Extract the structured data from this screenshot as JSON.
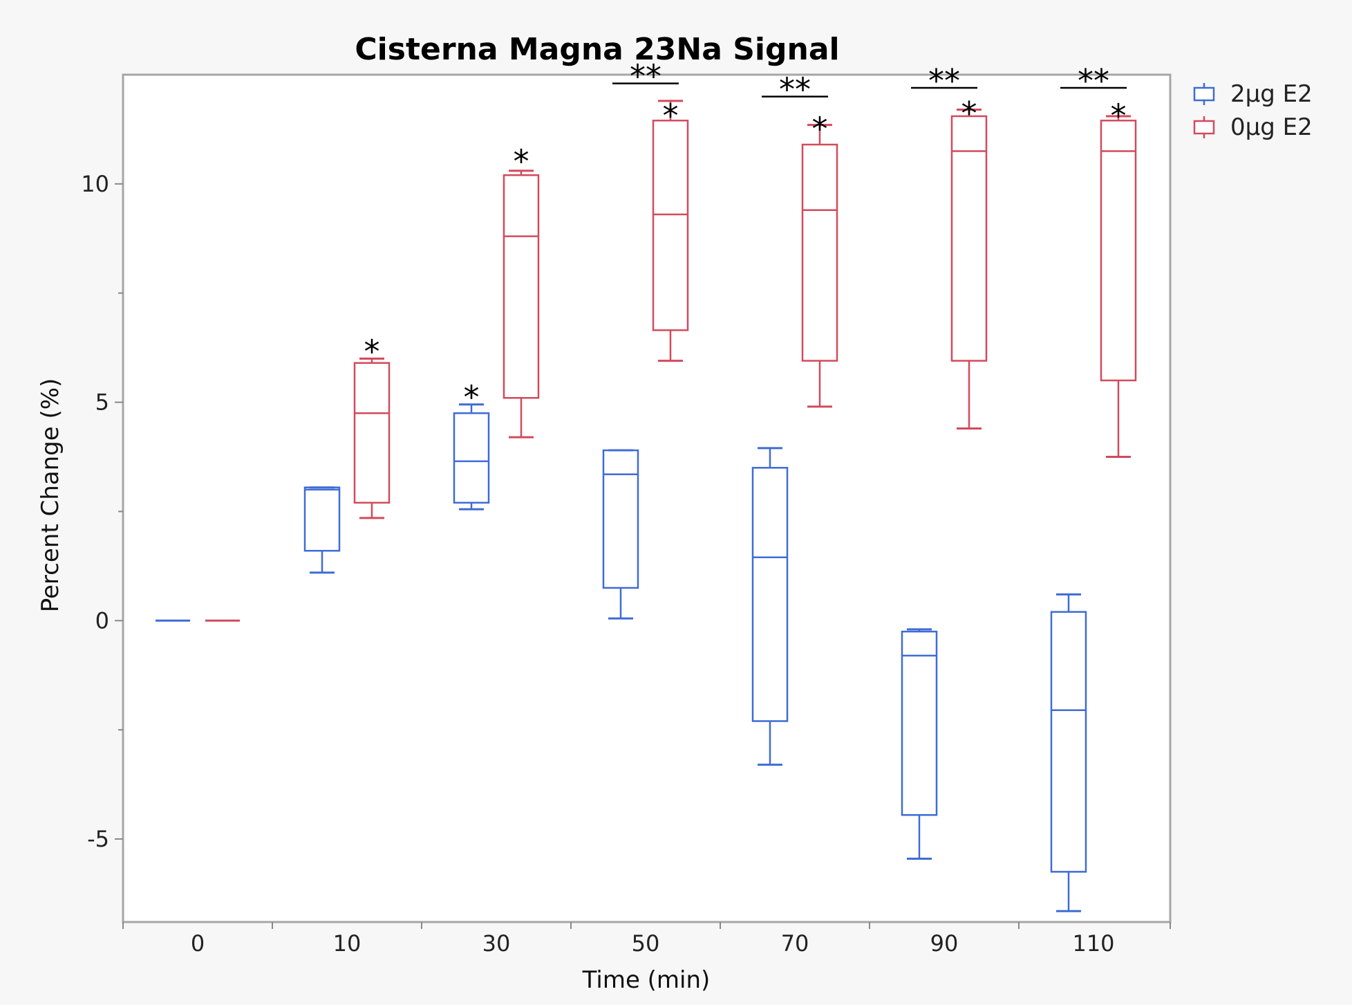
{
  "chart_data": {
    "type": "box",
    "title": "Cisterna Magna 23Na Signal",
    "xlabel": "Time (min)",
    "ylabel": "Percent Change (%)",
    "ylim": [
      -6.9,
      12.5
    ],
    "yticks": [
      -5,
      0,
      5,
      10
    ],
    "categories": [
      "0",
      "10",
      "30",
      "50",
      "70",
      "90",
      "110"
    ],
    "legend_position": "top-right outside",
    "series": [
      {
        "name": "2µg E2",
        "color": "#3e6bd6",
        "boxes": [
          {
            "min": 0,
            "q1": 0,
            "median": 0,
            "q3": 0,
            "max": 0
          },
          {
            "min": 1.1,
            "q1": 1.6,
            "median": 3.0,
            "q3": 3.05,
            "max": 3.05
          },
          {
            "min": 2.55,
            "q1": 2.7,
            "median": 3.65,
            "q3": 4.75,
            "max": 4.95
          },
          {
            "min": 0.05,
            "q1": 0.75,
            "median": 3.35,
            "q3": 3.9,
            "max": 3.9
          },
          {
            "min": -3.3,
            "q1": -2.3,
            "median": 1.45,
            "q3": 3.5,
            "max": 3.95
          },
          {
            "min": -5.45,
            "q1": -4.45,
            "median": -0.8,
            "q3": -0.25,
            "max": -0.2
          },
          {
            "min": -6.65,
            "q1": -5.75,
            "median": -2.05,
            "q3": 0.2,
            "max": 0.6
          }
        ]
      },
      {
        "name": "0µg E2",
        "color": "#d24a5c",
        "boxes": [
          {
            "min": 0,
            "q1": 0,
            "median": 0,
            "q3": 0,
            "max": 0
          },
          {
            "min": 2.35,
            "q1": 2.7,
            "median": 4.75,
            "q3": 5.9,
            "max": 6.0
          },
          {
            "min": 4.2,
            "q1": 5.1,
            "median": 8.8,
            "q3": 10.2,
            "max": 10.3
          },
          {
            "min": 5.95,
            "q1": 6.65,
            "median": 9.3,
            "q3": 11.45,
            "max": 11.9
          },
          {
            "min": 4.9,
            "q1": 5.95,
            "median": 9.4,
            "q3": 10.9,
            "max": 11.35
          },
          {
            "min": 4.4,
            "q1": 5.95,
            "median": 10.75,
            "q3": 11.55,
            "max": 11.7
          },
          {
            "min": 3.75,
            "q1": 5.5,
            "median": 10.75,
            "q3": 11.45,
            "max": 11.55
          }
        ]
      }
    ],
    "annotations": [
      {
        "text": "*",
        "category": "10",
        "series": "0µg E2",
        "y": 6.35
      },
      {
        "text": "*",
        "category": "30",
        "series": "2µg E2",
        "y": 5.3
      },
      {
        "text": "*",
        "category": "30",
        "series": "0µg E2",
        "y": 10.7
      },
      {
        "text": "**",
        "category": "50",
        "between_series": true,
        "y": 12.3
      },
      {
        "text": "*",
        "category": "50",
        "series": "0µg E2",
        "y": 11.75
      },
      {
        "text": "**",
        "category": "70",
        "between_series": true,
        "y": 12.0
      },
      {
        "text": "*",
        "category": "70",
        "series": "0µg E2",
        "y": 11.45
      },
      {
        "text": "**",
        "category": "90",
        "between_series": true,
        "y": 12.2
      },
      {
        "text": "*",
        "category": "90",
        "series": "0µg E2",
        "y": 11.8
      },
      {
        "text": "**",
        "category": "110",
        "between_series": true,
        "y": 12.2
      },
      {
        "text": "*",
        "category": "110",
        "series": "0µg E2",
        "y": 11.75
      }
    ]
  }
}
